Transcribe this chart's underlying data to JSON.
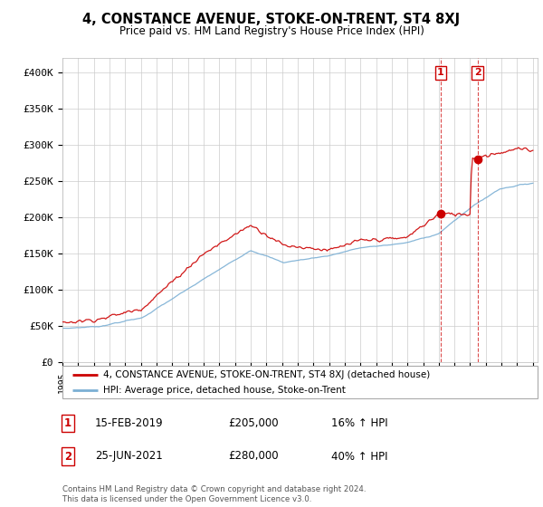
{
  "title": "4, CONSTANCE AVENUE, STOKE-ON-TRENT, ST4 8XJ",
  "subtitle": "Price paid vs. HM Land Registry's House Price Index (HPI)",
  "legend_line1": "4, CONSTANCE AVENUE, STOKE-ON-TRENT, ST4 8XJ (detached house)",
  "legend_line2": "HPI: Average price, detached house, Stoke-on-Trent",
  "annotation1_label": "1",
  "annotation1_date": "15-FEB-2019",
  "annotation1_price": "£205,000",
  "annotation1_hpi": "16% ↑ HPI",
  "annotation2_label": "2",
  "annotation2_date": "25-JUN-2021",
  "annotation2_price": "£280,000",
  "annotation2_hpi": "40% ↑ HPI",
  "footer": "Contains HM Land Registry data © Crown copyright and database right 2024.\nThis data is licensed under the Open Government Licence v3.0.",
  "red_color": "#cc0000",
  "blue_color": "#7bafd4",
  "annotation_line_color": "#cc0000",
  "grid_color": "#cccccc",
  "background_color": "#ffffff",
  "ylim": [
    0,
    420000
  ],
  "yticks": [
    0,
    50000,
    100000,
    150000,
    200000,
    250000,
    300000,
    350000,
    400000
  ],
  "ytick_labels": [
    "£0",
    "£50K",
    "£100K",
    "£150K",
    "£200K",
    "£250K",
    "£300K",
    "£350K",
    "£400K"
  ],
  "sale1_year": 2019.12,
  "sale1_price": 205000,
  "sale2_year": 2021.48,
  "sale2_price": 280000,
  "hpi_keypoints_t": [
    0,
    0.08,
    0.17,
    0.3,
    0.4,
    0.47,
    0.57,
    0.63,
    0.73,
    0.8,
    0.87,
    0.93,
    1.0
  ],
  "hpi_keypoints_v": [
    47000,
    50000,
    62000,
    115000,
    155000,
    138000,
    148000,
    158000,
    165000,
    178000,
    215000,
    240000,
    248000
  ],
  "price_keypoints_t": [
    0,
    0.08,
    0.17,
    0.3,
    0.4,
    0.47,
    0.57,
    0.63,
    0.73,
    0.8,
    0.867,
    0.87,
    0.97,
    1.0
  ],
  "price_keypoints_v": [
    55000,
    60000,
    75000,
    150000,
    190000,
    162000,
    155000,
    168000,
    172000,
    205000,
    205000,
    282000,
    295000,
    292000
  ]
}
